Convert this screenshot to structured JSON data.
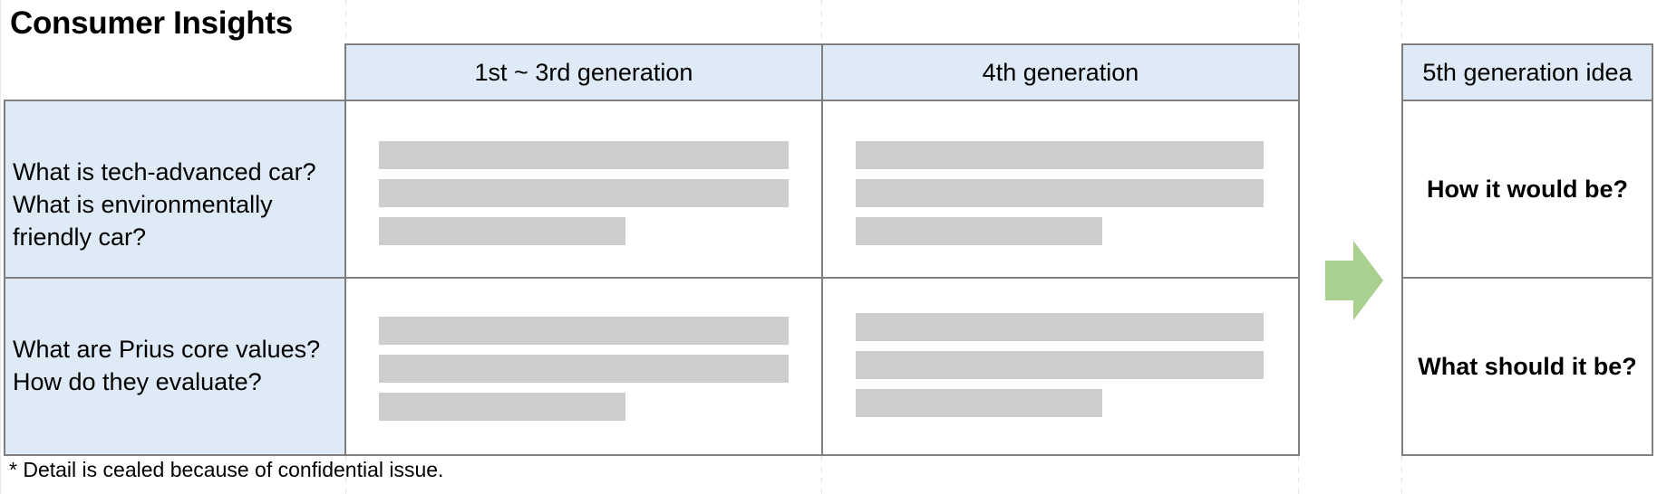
{
  "title": "Consumer Insights",
  "columns": {
    "gen_1_3": "1st ~ 3rd generation",
    "gen_4": "4th generation",
    "gen_5_idea": "5th generation idea"
  },
  "rows": [
    {
      "lines": [
        "What is tech-advanced car?",
        "What is environmentally",
        "friendly car?"
      ],
      "gen5_question": "How it would be?"
    },
    {
      "lines": [
        "What are Prius core values?",
        "How do they evaluate?"
      ],
      "gen5_question": "What should it be?"
    }
  ],
  "footnote": "* Detail is cealed because of confidential issue.",
  "colors": {
    "header_fill": "#deeaf6",
    "placeholder_bar": "#cdcdcd",
    "arrow": "#a9d08e",
    "border": "#7f7f7f"
  },
  "icons": {
    "arrow": "right-arrow-icon"
  }
}
